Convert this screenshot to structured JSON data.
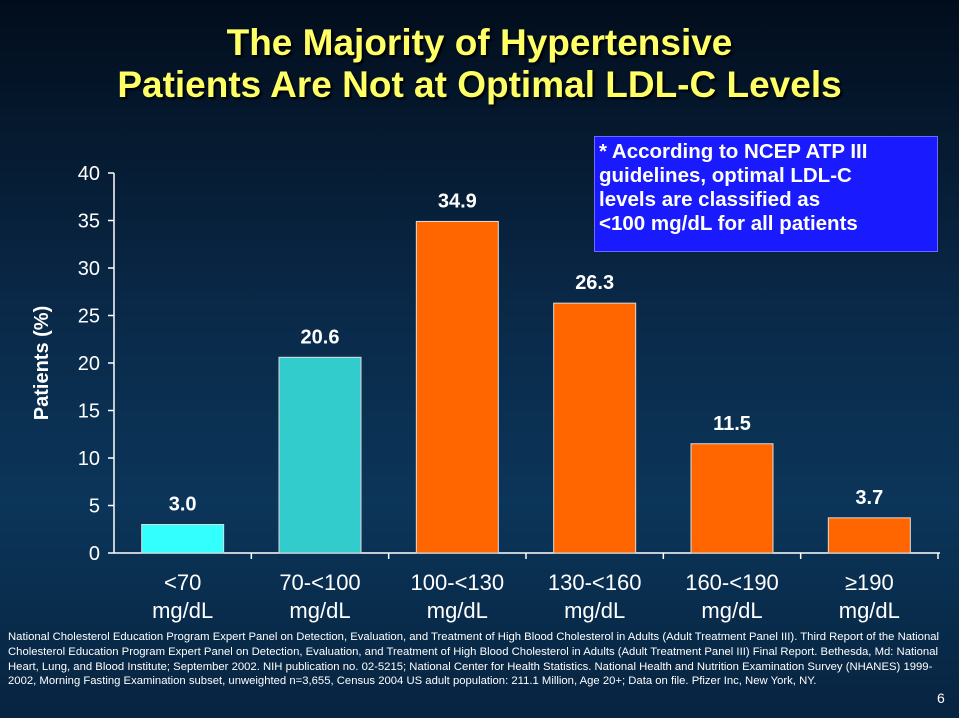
{
  "title_lines": [
    "The Majority of Hypertensive",
    "Patients Are Not at Optimal LDL-C Levels"
  ],
  "note": "* According to NCEP ATP III\nguidelines, optimal LDL-C\nlevels are classified as\n<100 mg/dL for all patients",
  "footnote": "National Cholesterol Education Program Expert Panel on Detection, Evaluation, and Treatment of High Blood Cholesterol in Adults (Adult Treatment Panel III). Third Report of the National Cholesterol Education Program Expert Panel on Detection, Evaluation, and Treatment of High Blood Cholesterol in Adults (Adult Treatment Panel III) Final Report. Bethesda, Md: National Heart, Lung, and Blood Institute; September 2002. NIH publication no. 02-5215; National Center for Health Statistics. National Health and Nutrition Examination Survey (NHANES) 1999-2002, Morning Fasting Examination subset, unweighted n=3,655, Census 2004 US adult population: 211.1 Million, Age 20+; Data on file. Pfizer Inc, New York, NY.",
  "slide_number": "6",
  "colors": {
    "title": "#ffff66",
    "note_background": "#1a1aff",
    "bar_cyan": "#33ffff",
    "bar_teal": "#33cccc",
    "bar_orange": "#ff6600",
    "text": "#ffffff"
  },
  "chart_data": {
    "type": "bar",
    "ylabel": "Patients (%)",
    "xlabel": "",
    "ylim": [
      0,
      40
    ],
    "yticks": [
      0,
      5,
      10,
      15,
      20,
      25,
      30,
      35,
      40
    ],
    "grid": false,
    "categories": [
      [
        "<70",
        "mg/dL"
      ],
      [
        "70-<100",
        "mg/dL"
      ],
      [
        "100-<130",
        "mg/dL"
      ],
      [
        "130-<160",
        "mg/dL"
      ],
      [
        "160-<190",
        "mg/dL"
      ],
      [
        "≥190",
        "mg/dL"
      ]
    ],
    "values": [
      3.0,
      20.6,
      34.9,
      26.3,
      11.5,
      3.7
    ],
    "value_labels": [
      "3.0",
      "20.6",
      "34.9",
      "26.3",
      "11.5",
      "3.7"
    ],
    "bar_colors": [
      "#33ffff",
      "#33cccc",
      "#ff6600",
      "#ff6600",
      "#ff6600",
      "#ff6600"
    ]
  }
}
